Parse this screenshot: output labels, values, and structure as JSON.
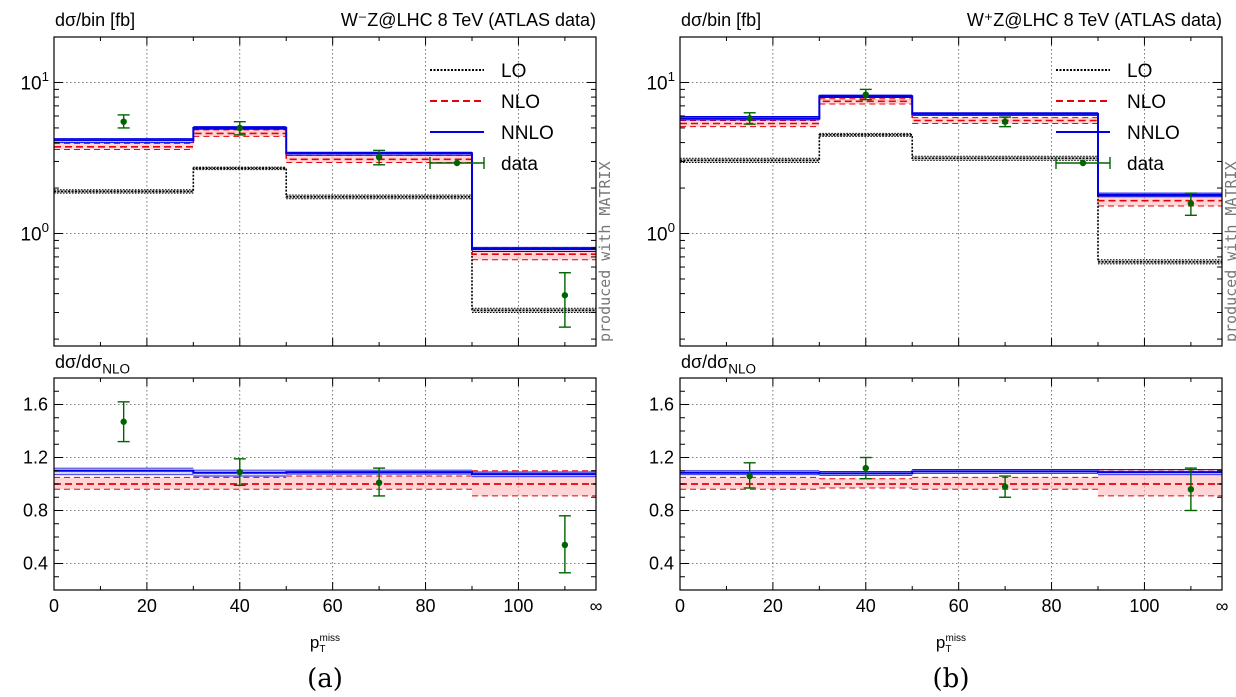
{
  "chart_data": [
    {
      "type": "step",
      "panel_caption": "(a)",
      "title": "W⁻Z@LHC 8 TeV (ATLAS data)",
      "ylabel_main": "dσ/bin [fb]",
      "ylabel_ratio": "dσ/dσ_NLO",
      "xlabel": "p_T^miss",
      "watermark": "produced with MATRIX",
      "y_scale_main": "log",
      "ylim_main": [
        0.18,
        20
      ],
      "ylim_ratio": [
        0.2,
        1.8
      ],
      "y_ticks_main": [
        "10^0",
        "10^1"
      ],
      "y_ticks_ratio": [
        "0.4",
        "0.8",
        "1.2",
        "1.6"
      ],
      "x_tick_labels": [
        "0",
        "20",
        "40",
        "60",
        "80",
        "100",
        "∞"
      ],
      "x_tick_values": [
        0,
        20,
        40,
        60,
        80,
        100,
        "inf"
      ],
      "grid": true,
      "legend_position": "top-right",
      "bin_edges": [
        0,
        30,
        50,
        90,
        "inf"
      ],
      "series": [
        {
          "name": "LO",
          "color": "#000000",
          "style": "dotted",
          "values": [
            1.9,
            2.7,
            1.75,
            0.31
          ],
          "band": [
            [
              1.85,
              1.95
            ],
            [
              2.65,
              2.75
            ],
            [
              1.7,
              1.8
            ],
            [
              0.3,
              0.32
            ]
          ]
        },
        {
          "name": "NLO",
          "color": "#e8000b",
          "style": "dashed",
          "values": [
            3.75,
            4.6,
            3.1,
            0.73
          ],
          "band": [
            [
              3.6,
              3.95
            ],
            [
              4.4,
              4.85
            ],
            [
              2.95,
              3.3
            ],
            [
              0.67,
              0.8
            ]
          ]
        },
        {
          "name": "NNLO",
          "color": "#0000e6",
          "style": "solid",
          "values": [
            4.15,
            5.0,
            3.4,
            0.79
          ],
          "band": [
            [
              4.0,
              4.25
            ],
            [
              4.9,
              5.1
            ],
            [
              3.3,
              3.45
            ],
            [
              0.76,
              0.81
            ]
          ]
        }
      ],
      "data": {
        "name": "data",
        "color": "#006400",
        "x": [
          15,
          40,
          70,
          110
        ],
        "y": [
          5.5,
          5.0,
          3.2,
          0.39
        ],
        "yerr": [
          [
            5.0,
            6.1
          ],
          [
            4.5,
            5.5
          ],
          [
            2.85,
            3.55
          ],
          [
            0.24,
            0.55
          ]
        ]
      },
      "ratio": {
        "NNLO": [
          1.1,
          1.085,
          1.09,
          1.075
        ],
        "NNLO_band": [
          [
            1.07,
            1.12
          ],
          [
            1.06,
            1.105
          ],
          [
            1.075,
            1.105
          ],
          [
            1.055,
            1.09
          ]
        ],
        "NLO_band": [
          [
            0.96,
            1.05
          ],
          [
            0.96,
            1.05
          ],
          [
            0.96,
            1.06
          ],
          [
            0.91,
            1.1
          ]
        ],
        "data": [
          1.47,
          1.09,
          1.01,
          0.54
        ],
        "data_err": [
          [
            1.32,
            1.62
          ],
          [
            0.99,
            1.19
          ],
          [
            0.91,
            1.12
          ],
          [
            0.33,
            0.76
          ]
        ]
      }
    },
    {
      "type": "step",
      "panel_caption": "(b)",
      "title": "W⁺Z@LHC 8 TeV (ATLAS data)",
      "ylabel_main": "dσ/bin [fb]",
      "ylabel_ratio": "dσ/dσ_NLO",
      "xlabel": "p_T^miss",
      "watermark": "produced with MATRIX",
      "y_scale_main": "log",
      "ylim_main": [
        0.18,
        20
      ],
      "ylim_ratio": [
        0.2,
        1.8
      ],
      "y_ticks_main": [
        "10^0",
        "10^1"
      ],
      "y_ticks_ratio": [
        "0.4",
        "0.8",
        "1.2",
        "1.6"
      ],
      "x_tick_labels": [
        "0",
        "20",
        "40",
        "60",
        "80",
        "100",
        "∞"
      ],
      "x_tick_values": [
        0,
        20,
        40,
        60,
        80,
        100,
        "inf"
      ],
      "grid": true,
      "legend_position": "top-right",
      "bin_edges": [
        0,
        30,
        50,
        90,
        "inf"
      ],
      "series": [
        {
          "name": "LO",
          "color": "#000000",
          "style": "dotted",
          "values": [
            3.05,
            4.5,
            3.15,
            0.65
          ],
          "band": [
            [
              2.95,
              3.15
            ],
            [
              4.4,
              4.6
            ],
            [
              3.05,
              3.25
            ],
            [
              0.63,
              0.67
            ]
          ]
        },
        {
          "name": "NLO",
          "color": "#e8000b",
          "style": "dashed",
          "values": [
            5.35,
            7.5,
            5.6,
            1.65
          ],
          "band": [
            [
              5.1,
              5.6
            ],
            [
              7.2,
              7.8
            ],
            [
              5.35,
              5.85
            ],
            [
              1.52,
              1.8
            ]
          ]
        },
        {
          "name": "NNLO",
          "color": "#0000e6",
          "style": "solid",
          "values": [
            5.8,
            8.1,
            6.2,
            1.8
          ],
          "band": [
            [
              5.65,
              5.95
            ],
            [
              7.95,
              8.25
            ],
            [
              6.05,
              6.3
            ],
            [
              1.75,
              1.85
            ]
          ]
        }
      ],
      "data": {
        "name": "data",
        "color": "#006400",
        "x": [
          15,
          40,
          70,
          110
        ],
        "y": [
          5.8,
          8.3,
          5.5,
          1.58
        ],
        "yerr": [
          [
            5.3,
            6.3
          ],
          [
            7.7,
            9.0
          ],
          [
            5.1,
            5.9
          ],
          [
            1.32,
            1.85
          ]
        ]
      },
      "ratio": {
        "NNLO": [
          1.085,
          1.08,
          1.095,
          1.09
        ],
        "NNLO_band": [
          [
            1.07,
            1.1
          ],
          [
            1.065,
            1.095
          ],
          [
            1.08,
            1.11
          ],
          [
            1.07,
            1.11
          ]
        ],
        "NLO_band": [
          [
            0.96,
            1.05
          ],
          [
            0.97,
            1.04
          ],
          [
            0.96,
            1.05
          ],
          [
            0.91,
            1.1
          ]
        ],
        "data": [
          1.06,
          1.12,
          0.98,
          0.96
        ],
        "data_err": [
          [
            0.97,
            1.16
          ],
          [
            1.04,
            1.2
          ],
          [
            0.9,
            1.06
          ],
          [
            0.8,
            1.12
          ]
        ]
      }
    }
  ]
}
